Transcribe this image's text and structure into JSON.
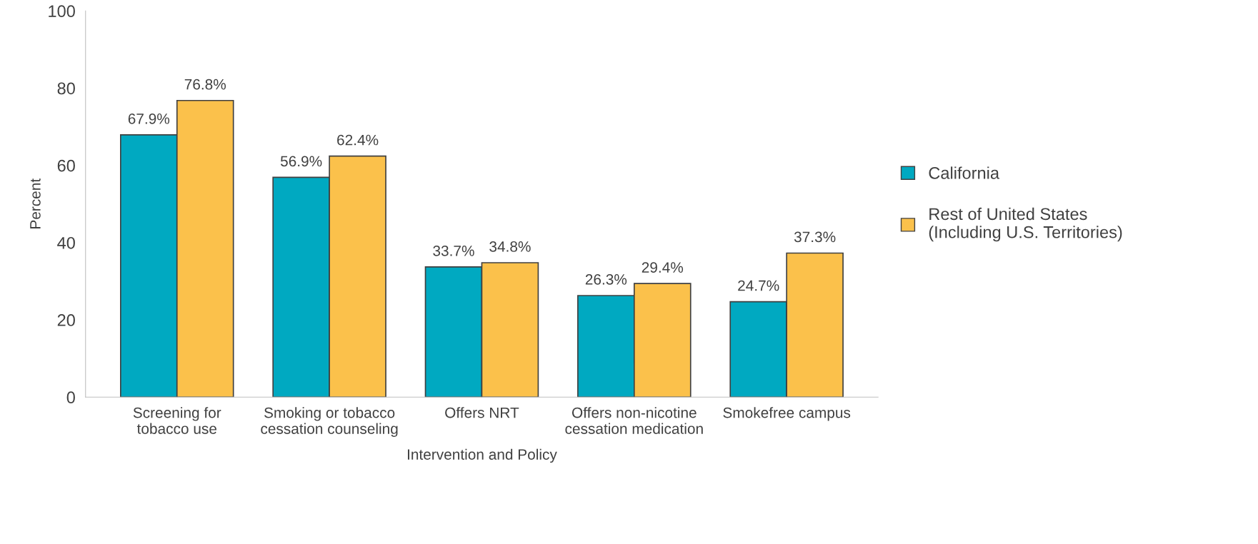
{
  "chart_data": {
    "type": "bar",
    "xlabel": "Intervention and Policy",
    "ylabel": "Percent",
    "categories": [
      "Screening for\ntobacco use",
      "Smoking or tobacco\ncessation counseling",
      "Offers NRT",
      "Offers non-nicotine\ncessation medication",
      "Smokefree campus"
    ],
    "series": [
      {
        "name": "California",
        "color": "#00a9c1",
        "values": [
          67.9,
          56.9,
          33.7,
          26.3,
          24.7
        ],
        "value_labels": [
          "67.9%",
          "56.9%",
          "33.7%",
          "26.3%",
          "24.7%"
        ]
      },
      {
        "name": "Rest of United States\n(Including U.S. Territories)",
        "color": "#fbc14b",
        "values": [
          76.8,
          62.4,
          34.8,
          29.4,
          37.3
        ],
        "value_labels": [
          "76.8%",
          "62.4%",
          "34.8%",
          "29.4%",
          "37.3%"
        ]
      }
    ],
    "ylim": [
      0,
      100
    ],
    "yticks": [
      0,
      20,
      40,
      60,
      80,
      100
    ],
    "grid": false,
    "legend": "right"
  }
}
